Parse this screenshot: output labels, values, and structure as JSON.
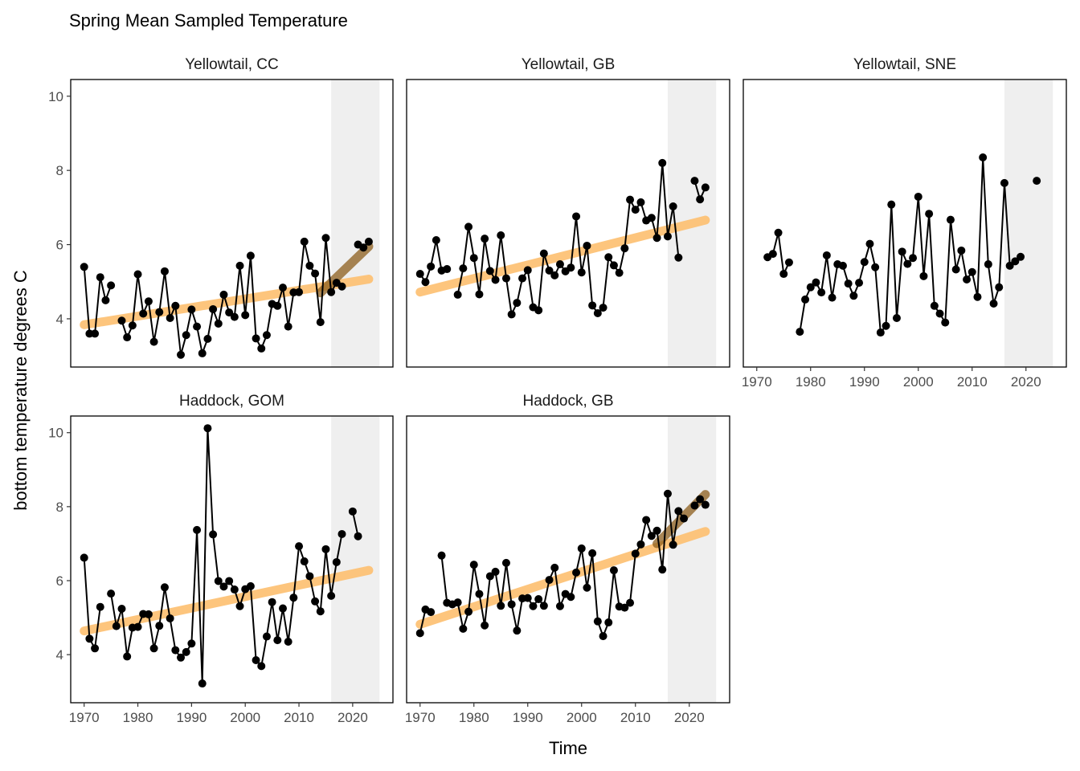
{
  "chart_data": {
    "type": "line",
    "title": "Spring Mean Sampled Temperature",
    "xlabel": "Time",
    "ylabel": "bottom temperature degrees C",
    "xlim": [
      1967.5,
      2027.5
    ],
    "ylim": [
      2.7,
      10.45
    ],
    "x_ticks": [
      1970,
      1980,
      1990,
      2000,
      2010,
      2020
    ],
    "y_ticks": [
      4,
      6,
      8,
      10
    ],
    "shade_range": [
      2016,
      2025
    ],
    "colors": {
      "series": "#000000",
      "long_trend": "#fdbf6f",
      "recent_trend": "#8c5e1c",
      "shade": "#efefef",
      "panel_border": "#000000"
    },
    "panels": [
      {
        "label": "Yellowtail, CC",
        "x": [
          1970,
          1971,
          1972,
          1973,
          1974,
          1975,
          1976,
          1977,
          1978,
          1979,
          1980,
          1981,
          1982,
          1983,
          1984,
          1985,
          1986,
          1987,
          1988,
          1989,
          1990,
          1991,
          1992,
          1993,
          1994,
          1995,
          1996,
          1997,
          1998,
          1999,
          2000,
          2001,
          2002,
          2003,
          2004,
          2005,
          2006,
          2007,
          2008,
          2009,
          2010,
          2011,
          2012,
          2013,
          2014,
          2015,
          2016,
          2017,
          2018,
          2019,
          2020,
          2021,
          2022,
          2023
        ],
        "y": [
          5.4,
          3.6,
          3.6,
          5.12,
          4.5,
          4.9,
          null,
          3.95,
          3.5,
          3.82,
          5.2,
          4.14,
          4.47,
          3.38,
          4.18,
          5.28,
          4.02,
          4.35,
          3.03,
          3.56,
          4.25,
          3.79,
          3.07,
          3.46,
          4.26,
          3.87,
          4.65,
          4.17,
          4.05,
          5.43,
          4.1,
          5.7,
          3.47,
          3.2,
          3.56,
          4.4,
          4.35,
          4.84,
          3.79,
          4.71,
          4.72,
          6.08,
          5.43,
          5.22,
          3.91,
          6.18,
          4.72,
          4.97,
          4.87,
          null,
          null,
          6.0,
          5.92,
          6.08
        ],
        "trend_long": [
          3.84,
          5.07
        ],
        "trend_recent": [
          4.7,
          5.95
        ]
      },
      {
        "label": "Yellowtail, GB",
        "x": [
          1970,
          1971,
          1972,
          1973,
          1974,
          1975,
          1976,
          1977,
          1978,
          1979,
          1980,
          1981,
          1982,
          1983,
          1984,
          1985,
          1986,
          1987,
          1988,
          1989,
          1990,
          1991,
          1992,
          1993,
          1994,
          1995,
          1996,
          1997,
          1998,
          1999,
          2000,
          2001,
          2002,
          2003,
          2004,
          2005,
          2006,
          2007,
          2008,
          2009,
          2010,
          2011,
          2012,
          2013,
          2014,
          2015,
          2016,
          2017,
          2018,
          2019,
          2020,
          2021,
          2022,
          2023
        ],
        "y": [
          5.21,
          4.99,
          5.41,
          6.12,
          5.3,
          5.34,
          null,
          4.65,
          5.36,
          6.48,
          5.64,
          4.66,
          6.16,
          5.29,
          5.05,
          6.25,
          5.09,
          4.12,
          4.43,
          5.09,
          5.31,
          4.31,
          4.23,
          5.76,
          5.3,
          5.17,
          5.47,
          5.28,
          5.38,
          6.76,
          5.25,
          5.97,
          4.36,
          4.15,
          4.3,
          5.66,
          5.44,
          5.24,
          5.9,
          7.21,
          6.94,
          7.14,
          6.65,
          6.72,
          6.18,
          8.2,
          6.22,
          7.03,
          5.65,
          null,
          null,
          7.72,
          7.22,
          7.54
        ],
        "trend_long": [
          4.72,
          6.66
        ],
        "trend_recent": null
      },
      {
        "label": "Yellowtail, SNE",
        "x": [
          1972,
          1973,
          1974,
          1975,
          1976,
          1977,
          1978,
          1979,
          1980,
          1981,
          1982,
          1983,
          1984,
          1985,
          1986,
          1987,
          1988,
          1989,
          1990,
          1991,
          1992,
          1993,
          1994,
          1995,
          1996,
          1997,
          1998,
          1999,
          2000,
          2001,
          2002,
          2003,
          2004,
          2005,
          2006,
          2007,
          2008,
          2009,
          2010,
          2011,
          2012,
          2013,
          2014,
          2015,
          2016,
          2017,
          2018,
          2019,
          2020,
          2021,
          2022
        ],
        "y": [
          5.66,
          5.75,
          6.32,
          5.21,
          5.52,
          null,
          3.65,
          4.52,
          4.85,
          4.98,
          4.71,
          5.71,
          4.57,
          5.47,
          5.43,
          4.95,
          4.62,
          4.97,
          5.53,
          6.02,
          5.39,
          3.63,
          3.81,
          7.08,
          4.02,
          5.81,
          5.48,
          5.64,
          7.29,
          5.15,
          6.83,
          4.35,
          4.14,
          3.9,
          6.67,
          5.33,
          5.84,
          5.06,
          5.26,
          4.59,
          8.35,
          5.47,
          4.41,
          4.85,
          7.66,
          5.43,
          5.55,
          5.67,
          null,
          null,
          7.72
        ],
        "trend_long": null,
        "trend_recent": null
      },
      {
        "label": "Haddock, GOM",
        "x": [
          1970,
          1971,
          1972,
          1973,
          1974,
          1975,
          1976,
          1977,
          1978,
          1979,
          1980,
          1981,
          1982,
          1983,
          1984,
          1985,
          1986,
          1987,
          1988,
          1989,
          1990,
          1991,
          1992,
          1993,
          1994,
          1995,
          1996,
          1997,
          1998,
          1999,
          2000,
          2001,
          2002,
          2003,
          2004,
          2005,
          2006,
          2007,
          2008,
          2009,
          2010,
          2011,
          2012,
          2013,
          2014,
          2015,
          2016,
          2017,
          2018,
          2019,
          2020,
          2021,
          2022
        ],
        "y": [
          6.62,
          4.43,
          4.17,
          5.29,
          null,
          5.65,
          4.77,
          5.24,
          3.95,
          4.73,
          4.75,
          5.1,
          5.09,
          4.17,
          4.78,
          5.82,
          4.98,
          4.12,
          3.92,
          4.07,
          4.3,
          7.37,
          3.22,
          10.12,
          7.25,
          5.99,
          5.84,
          5.99,
          5.76,
          5.31,
          5.77,
          5.85,
          3.85,
          3.69,
          4.49,
          5.42,
          4.39,
          5.25,
          4.35,
          5.54,
          6.93,
          6.52,
          6.12,
          5.44,
          5.17,
          6.85,
          5.59,
          6.5,
          7.26,
          null,
          7.87,
          7.2,
          null
        ],
        "trend_long": [
          4.64,
          6.28
        ],
        "trend_recent": null
      },
      {
        "label": "Haddock, GB",
        "x": [
          1970,
          1971,
          1972,
          1973,
          1974,
          1975,
          1976,
          1977,
          1978,
          1979,
          1980,
          1981,
          1982,
          1983,
          1984,
          1985,
          1986,
          1987,
          1988,
          1989,
          1990,
          1991,
          1992,
          1993,
          1994,
          1995,
          1996,
          1997,
          1998,
          1999,
          2000,
          2001,
          2002,
          2003,
          2004,
          2005,
          2006,
          2007,
          2008,
          2009,
          2010,
          2011,
          2012,
          2013,
          2014,
          2015,
          2016,
          2017,
          2018,
          2019,
          2020,
          2021,
          2022,
          2023
        ],
        "y": [
          4.58,
          5.22,
          5.15,
          null,
          6.68,
          5.4,
          5.36,
          5.41,
          4.7,
          5.16,
          6.43,
          5.64,
          4.79,
          6.12,
          6.24,
          5.32,
          6.48,
          5.36,
          4.65,
          5.52,
          5.53,
          5.31,
          5.5,
          5.32,
          6.02,
          6.35,
          5.31,
          5.64,
          5.56,
          6.22,
          6.87,
          5.81,
          6.74,
          4.9,
          4.5,
          4.87,
          6.28,
          5.3,
          5.27,
          5.4,
          6.73,
          6.98,
          7.64,
          7.21,
          7.35,
          6.3,
          8.35,
          6.97,
          7.88,
          7.68,
          null,
          8.03,
          8.2,
          8.05
        ],
        "trend_long": [
          4.82,
          7.33
        ],
        "trend_recent": [
          7.0,
          8.33
        ]
      }
    ]
  }
}
